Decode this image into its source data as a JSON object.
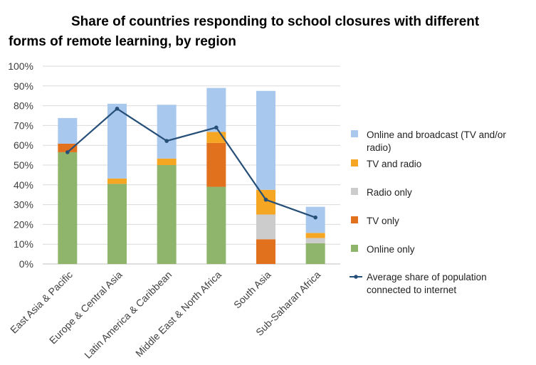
{
  "chart_data": {
    "type": "bar",
    "stacked": true,
    "title_line1": "Share of countries responding to school closures with different",
    "title_line2": "forms of remote learning, by region",
    "categories": [
      "East Asia & Pacific",
      "Europe & Central Asia",
      "Latin America & Caribbean",
      "Middle East & North Africa",
      "South Asia",
      "Sub-Saharan Africa"
    ],
    "ylim": [
      0,
      100
    ],
    "yticks": [
      "0%",
      "10%",
      "20%",
      "30%",
      "40%",
      "50%",
      "60%",
      "70%",
      "80%",
      "90%",
      "100%"
    ],
    "grid": true,
    "legend_position": "right",
    "series": [
      {
        "name": "Online only",
        "color": "#8eb56b",
        "values": [
          56.5,
          40.5,
          50,
          39,
          0,
          10.5
        ]
      },
      {
        "name": "TV only",
        "color": "#e2711d",
        "values": [
          4.3,
          0,
          0,
          22.2,
          12.5,
          0
        ]
      },
      {
        "name": "Radio only",
        "color": "#cccccc",
        "values": [
          0,
          0,
          0,
          0,
          12.5,
          2.6
        ]
      },
      {
        "name": "TV and radio",
        "color": "#f5a623",
        "values": [
          0,
          2.7,
          3.3,
          5.6,
          12.5,
          2.6
        ]
      },
      {
        "name": "Online and broadcast (TV and/or radio)",
        "color": "#a9c8ee",
        "values": [
          13,
          37.8,
          27.2,
          22.2,
          50,
          13.2
        ]
      }
    ],
    "line_series": {
      "name": "Average share of population connected to internet",
      "color": "#264f78",
      "values": [
        56.5,
        78.5,
        62.2,
        69,
        32.5,
        23.5
      ]
    }
  },
  "legend": {
    "online_broadcast_l1": "Online and broadcast (TV and/or",
    "online_broadcast_l2": "radio)",
    "tv_radio": "TV and radio",
    "radio_only": "Radio only",
    "tv_only": "TV only",
    "online_only": "Online only",
    "avg_l1": "Average share of population",
    "avg_l2": "connected to internet"
  }
}
